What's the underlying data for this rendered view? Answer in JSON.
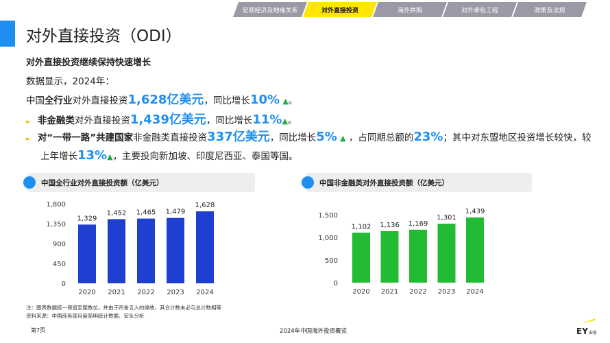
{
  "nav": {
    "tabs": [
      {
        "label": "宏观经济及地缘关系",
        "active": false
      },
      {
        "label": "对外直接投资",
        "active": true
      },
      {
        "label": "海外并购",
        "active": false
      },
      {
        "label": "对外承包工程",
        "active": false
      },
      {
        "label": "政策及法规",
        "active": false
      }
    ]
  },
  "page_title": "对外直接投资（ODI）",
  "subtitle": "对外直接投资继续保持快速增长",
  "intro": "数据显示，2024年：",
  "p1": {
    "a": "中国",
    "b": "全行业",
    "c": "对外直接投资",
    "v": "1,628亿美元",
    "d": "，同比增长",
    "g": "10%",
    "e": "。"
  },
  "p2": {
    "b": "非金融类",
    "c": "对外直接投资",
    "v": "1,439亿美元",
    "d": "，同比增长",
    "g": "11%",
    "e": "。"
  },
  "p3": {
    "b": "对“一带一路”共建国家",
    "c": "非金融类直接投资",
    "v": "337亿美元",
    "d": "，同比增长",
    "g": "5%",
    "f": "，占同期总额的",
    "h": "23%",
    "i": "；其中对东盟地区投资增长较快，较",
    "j": "上年增长",
    "k": "13%",
    "l": "，主要投向新加坡、印度尼西亚、泰国等国。"
  },
  "up_arrow": "▲",
  "chart_data": [
    {
      "type": "bar",
      "title": "中国全行业对外直接投资额（亿美元）",
      "categories": [
        "2020",
        "2021",
        "2022",
        "2023",
        "2024"
      ],
      "values": [
        1329,
        1452,
        1465,
        1479,
        1628
      ],
      "labels": [
        "1,329",
        "1,452",
        "1,465",
        "1,479",
        "1,628"
      ],
      "ylim": [
        0,
        1800
      ],
      "yticks": [
        "0",
        "450",
        "900",
        "1,350",
        "1,800"
      ],
      "ytick_values": [
        0,
        450,
        900,
        1350,
        1800
      ],
      "color": "#1f3fd0"
    },
    {
      "type": "bar",
      "title": "中国非金融类对外直接投资额（亿美元）",
      "categories": [
        "2020",
        "2021",
        "2022",
        "2023",
        "2024"
      ],
      "values": [
        1102,
        1136,
        1169,
        1301,
        1439
      ],
      "labels": [
        "1,102",
        "1,136",
        "1,169",
        "1,301",
        "1,439"
      ],
      "ylim": [
        0,
        1500
      ],
      "yticks": [
        "0",
        "500",
        "1,000",
        "1,500"
      ],
      "ytick_values": [
        0,
        500,
        1000,
        1500
      ],
      "color": "#22bb33"
    }
  ],
  "notes": [
    "注：图表数据统一保留至整数位，并由于四舍五入的缘故，其合计数未必与总计数相等",
    "资料来源：中国商务部月度简明统计数据、安永分析"
  ],
  "footer": {
    "page": "第7页",
    "center": "2024年中国海外投资概览",
    "logo": "EY安永"
  }
}
